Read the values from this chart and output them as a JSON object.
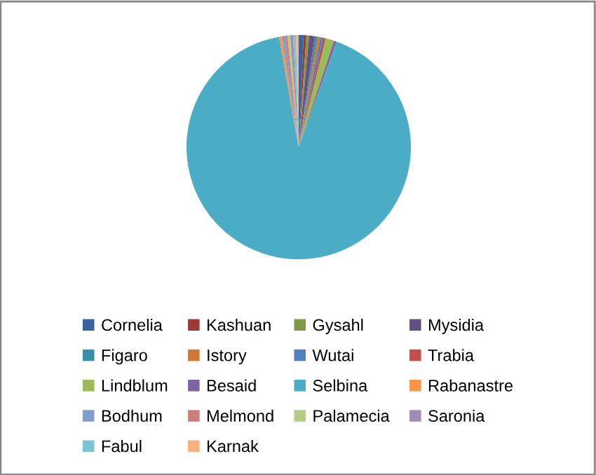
{
  "chart_data": {
    "type": "pie",
    "categories": [
      "Cornelia",
      "Kashuan",
      "Gysahl",
      "Mysidia",
      "Figaro",
      "Istory",
      "Wutai",
      "Trabia",
      "Lindblum",
      "Besaid",
      "Selbina",
      "Rabanastre",
      "Bodhum",
      "Melmond",
      "Palamecia",
      "Saronia",
      "Fabul",
      "Karnak"
    ],
    "values": [
      0.7,
      0.4,
      0.4,
      0.8,
      0.4,
      0.4,
      0.4,
      0.4,
      1.2,
      0.4,
      91.7,
      0.4,
      0.4,
      0.4,
      0.4,
      0.4,
      0.4,
      0.4
    ],
    "colors": [
      "#3a64a0",
      "#9a3b38",
      "#7d9a47",
      "#674f85",
      "#3b8ea5",
      "#cc7a35",
      "#4f81bd",
      "#c0504d",
      "#9bbb59",
      "#8064a2",
      "#4bacc6",
      "#f79646",
      "#7f9ed0",
      "#cf7d7b",
      "#b3cd87",
      "#a08ab8",
      "#7dc3d6",
      "#f9b180"
    ],
    "legend": "bottom"
  }
}
